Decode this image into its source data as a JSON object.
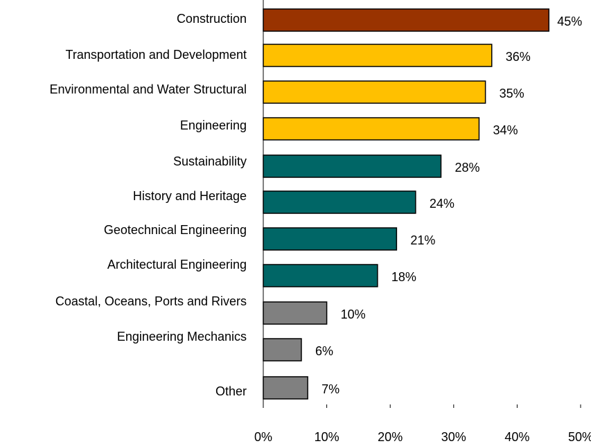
{
  "chart_data": {
    "type": "bar",
    "orientation": "horizontal",
    "categories": [
      "Construction",
      "Transportation and Development",
      "Environmental and Water Structural",
      "Engineering",
      "Sustainability",
      "History and Heritage",
      "Geotechnical Engineering",
      "Architectural Engineering",
      "Coastal, Oceans, Ports and Rivers",
      "Engineering Mechanics",
      "Other"
    ],
    "values": [
      45,
      36,
      35,
      34,
      28,
      24,
      21,
      18,
      10,
      6,
      7
    ],
    "value_labels": [
      "45%",
      "36%",
      "35%",
      "34%",
      "28%",
      "24%",
      "21%",
      "18%",
      "10%",
      "6%",
      "7%"
    ],
    "colors": [
      "#993300",
      "#ffc000",
      "#ffc000",
      "#ffc000",
      "#006666",
      "#006666",
      "#006666",
      "#006666",
      "#808080",
      "#808080",
      "#808080"
    ],
    "xlim": [
      0,
      50
    ],
    "xticks": [
      {
        "value": 0,
        "label": "0%"
      },
      {
        "value": 10,
        "label": "10%"
      },
      {
        "value": 20,
        "label": "20%"
      },
      {
        "value": 30,
        "label": "30%"
      },
      {
        "value": 40,
        "label": "40%"
      },
      {
        "value": 50,
        "label": "50%"
      }
    ],
    "grid": false
  }
}
